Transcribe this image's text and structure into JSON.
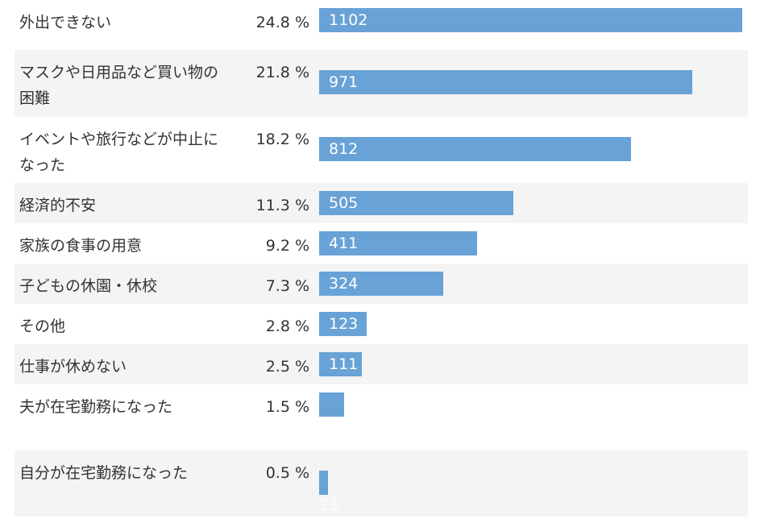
{
  "colors": {
    "bar": "#68a2d6",
    "row_alt": "#f4f4f4",
    "text": "#333333",
    "bar_text": "#ffffff"
  },
  "chart_data": {
    "type": "bar",
    "orientation": "horizontal",
    "title": "",
    "xlabel": "",
    "ylabel": "",
    "xlim": [
      0,
      1102
    ],
    "grid": false,
    "legend": "none",
    "unit": "%",
    "categories": [
      "外出できない",
      "マスクや日用品など買い物の困難",
      "イベントや旅行などが中止になった",
      "経済的不安",
      "家族の食事の用意",
      "子どもの休園・休校",
      "その他",
      "仕事が休めない",
      "夫が在宅勤務になった",
      "自分が在宅勤務になった"
    ],
    "values": [
      1102,
      971,
      812,
      505,
      411,
      324,
      123,
      111,
      66,
      23
    ],
    "value_labels": [
      "1102",
      "971",
      "812",
      "505",
      "411",
      "324",
      "123",
      "111",
      "",
      "23"
    ],
    "percentages": [
      "24.8 %",
      "21.8 %",
      "18.2 %",
      "11.3 %",
      "9.2 %",
      "7.3 %",
      "2.8 %",
      "2.5 %",
      "1.5 %",
      "0.5 %"
    ]
  }
}
